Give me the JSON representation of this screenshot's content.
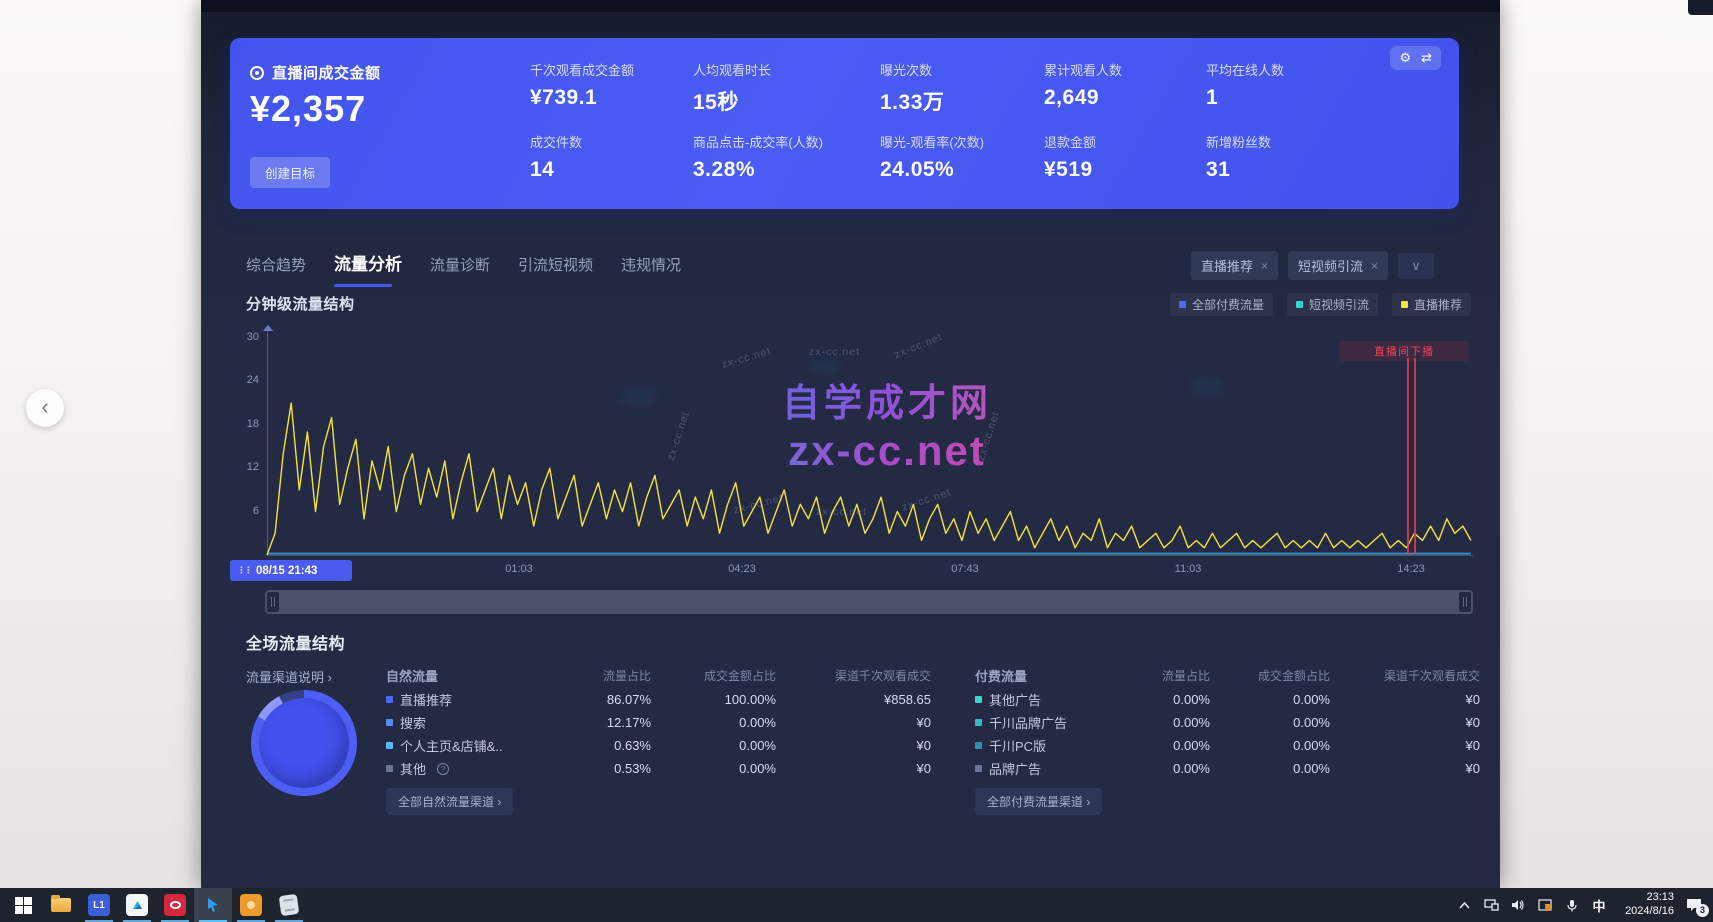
{
  "page": {
    "back_chevron": "‹",
    "watermark": {
      "line1": "自学成才网",
      "line2": "zx-cc.net",
      "small": "zx-cc.net"
    }
  },
  "stats_card": {
    "title": "直播间成交金额",
    "amount": "¥2,357",
    "create_goal": "创建目标",
    "tools": {
      "gear": "⚙",
      "swap": "⇄"
    },
    "metrics": [
      {
        "label": "千次观看成交金额",
        "value": "¥739.1"
      },
      {
        "label": "人均观看时长",
        "value": "15秒"
      },
      {
        "label": "曝光次数",
        "value": "1.33万"
      },
      {
        "label": "累计观看人数",
        "value": "2,649"
      },
      {
        "label": "平均在线人数",
        "value": "1"
      },
      {
        "label": "成交件数",
        "value": "14"
      },
      {
        "label": "商品点击-成交率(人数)",
        "value": "3.28%"
      },
      {
        "label": "曝光-观看率(次数)",
        "value": "24.05%"
      },
      {
        "label": "退款金额",
        "value": "¥519"
      },
      {
        "label": "新增粉丝数",
        "value": "31"
      }
    ]
  },
  "tabs": {
    "items": [
      {
        "label": "综合趋势"
      },
      {
        "label": "流量分析"
      },
      {
        "label": "流量诊断"
      },
      {
        "label": "引流短视频"
      },
      {
        "label": "违规情况"
      }
    ],
    "active_index": 1
  },
  "filters": {
    "chips": [
      {
        "label": "直播推荐",
        "close": "×"
      },
      {
        "label": "短视频引流",
        "close": "×"
      }
    ],
    "dropdown_chevron": "∨"
  },
  "minute_chart": {
    "title": "分钟级流量结构",
    "legend": [
      {
        "label": "全部付费流量",
        "color": "#4e68f6"
      },
      {
        "label": "短视频引流",
        "color": "#35d3cb"
      },
      {
        "label": "直播推荐",
        "color": "#f3e43c"
      }
    ],
    "y_ticks": [
      "30",
      "24",
      "18",
      "12",
      "6"
    ],
    "x_start_label": "08/15 21:43",
    "drag_dots": "⋮⋮",
    "x_ticks": [
      "01:03",
      "04:23",
      "07:43",
      "11:03",
      "14:23"
    ],
    "annotation": {
      "label": "直播间下播",
      "color": "#ef4458"
    }
  },
  "chart_data": {
    "type": "line",
    "title": "分钟级流量结构",
    "ylim": [
      0,
      30
    ],
    "y_ticks": [
      30,
      24,
      18,
      12,
      6
    ],
    "x_start": "08/15 21:43",
    "x_ticks": [
      "01:03",
      "04:23",
      "07:43",
      "11:03",
      "14:23"
    ],
    "grid": false,
    "legend_position": "top-right",
    "series": [
      {
        "name": "直播推荐",
        "color": "#f3e43c",
        "values": [
          0,
          3,
          14,
          21,
          9,
          17,
          6,
          15,
          19,
          7,
          12,
          16,
          5,
          13,
          9,
          15,
          6,
          11,
          14,
          7,
          12,
          8,
          13,
          5,
          10,
          14,
          6,
          9,
          12,
          5,
          11,
          7,
          10,
          4,
          9,
          12,
          5,
          8,
          11,
          4,
          7,
          10,
          5,
          9,
          6,
          10,
          4,
          8,
          11,
          5,
          7,
          9,
          4,
          8,
          5,
          9,
          3,
          7,
          10,
          4,
          6,
          8,
          3,
          6,
          9,
          4,
          7,
          5,
          8,
          3,
          6,
          8,
          4,
          7,
          3,
          5,
          8,
          3,
          6,
          4,
          7,
          2,
          5,
          7,
          3,
          5,
          2,
          6,
          3,
          5,
          2,
          4,
          6,
          2,
          4,
          1,
          3,
          5,
          2,
          4,
          1,
          3,
          2,
          5,
          1,
          3,
          2,
          4,
          1,
          2,
          3,
          1,
          2,
          4,
          1,
          2,
          1,
          3,
          1,
          2,
          3,
          1,
          2,
          1,
          2,
          3,
          1,
          2,
          1,
          2,
          1,
          3,
          1,
          2,
          1,
          2,
          1,
          2,
          3,
          1,
          2,
          1,
          3,
          2,
          4,
          2,
          5,
          3,
          4,
          2
        ]
      },
      {
        "name": "短视频引流",
        "color": "#35d3cb",
        "values_constant": 0
      },
      {
        "name": "全部付费流量",
        "color": "#4e68f6",
        "values_constant": 0
      }
    ],
    "annotations": [
      {
        "x_label": "14:23",
        "text": "直播间下播",
        "color": "#ef4458"
      }
    ]
  },
  "session": {
    "title": "全场流量结构",
    "channel_note": "流量渠道说明 ›",
    "natural": {
      "name": "自然流量",
      "columns": [
        "流量占比",
        "成交金额占比",
        "渠道千次观看成交"
      ],
      "rows": [
        {
          "name": "直播推荐",
          "dot": "#4e68f6",
          "share": "86.07%",
          "gmv_share": "100.00%",
          "gpm": "¥858.65"
        },
        {
          "name": "搜索",
          "dot": "#5b8bf7",
          "share": "12.17%",
          "gmv_share": "0.00%",
          "gpm": "¥0"
        },
        {
          "name": "个人主页&店铺&..",
          "dot": "#58b6f0",
          "share": "0.63%",
          "gmv_share": "0.00%",
          "gpm": "¥0"
        },
        {
          "name": "其他",
          "info": "?",
          "dot": "#6a7392",
          "share": "0.53%",
          "gmv_share": "0.00%",
          "gpm": "¥0"
        }
      ],
      "footer": "全部自然流量渠道 ›"
    },
    "paid": {
      "name": "付费流量",
      "columns": [
        "流量占比",
        "成交金额占比",
        "渠道千次观看成交"
      ],
      "rows": [
        {
          "name": "其他广告",
          "dot": "#3bd5cf",
          "share": "0.00%",
          "gmv_share": "0.00%",
          "gpm": "¥0"
        },
        {
          "name": "千川品牌广告",
          "dot": "#35b9c4",
          "share": "0.00%",
          "gmv_share": "0.00%",
          "gpm": "¥0"
        },
        {
          "name": "千川PC版",
          "dot": "#2f8fae",
          "share": "0.00%",
          "gmv_share": "0.00%",
          "gpm": "¥0"
        },
        {
          "name": "品牌广告",
          "dot": "#6a7392",
          "share": "0.00%",
          "gmv_share": "0.00%",
          "gpm": "¥0"
        }
      ],
      "footer": "全部付费流量渠道 ›"
    }
  },
  "taskbar": {
    "tray": {
      "ime": "中",
      "time": "23:13",
      "date": "2024/8/16",
      "badge": "3"
    }
  }
}
